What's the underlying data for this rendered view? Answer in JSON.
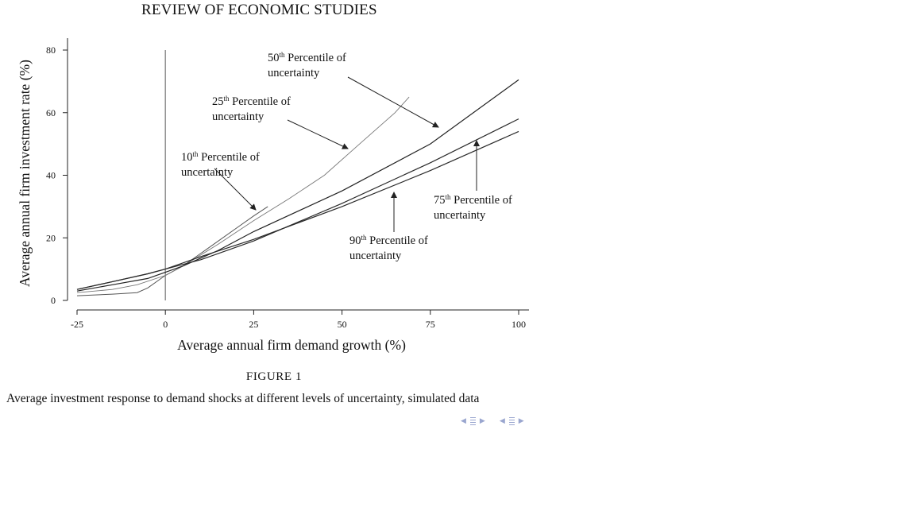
{
  "header": {
    "journal": "REVIEW OF ECONOMIC STUDIES"
  },
  "figure": {
    "label": "FIGURE 1",
    "caption": "Average investment response to demand shocks at different levels of uncertainty, simulated data"
  },
  "chart_data": {
    "type": "line",
    "xlabel": "Average annual firm demand growth (%)",
    "ylabel": "Average annual firm investment rate (%)",
    "xlim": [
      -25,
      100
    ],
    "ylim": [
      0,
      80
    ],
    "xticks": [
      -25,
      0,
      25,
      50,
      75,
      100
    ],
    "yticks": [
      0,
      20,
      40,
      60,
      80
    ],
    "vline_x": 0,
    "grid": false,
    "series": [
      {
        "name": "10th Percentile of uncertainty",
        "x": [
          -25,
          -15,
          -8,
          -5,
          0,
          5,
          10,
          15,
          20,
          25,
          29
        ],
        "y": [
          1.5,
          2,
          2.5,
          4,
          8,
          11,
          15,
          19,
          23,
          27,
          30
        ]
      },
      {
        "name": "25th Percentile of uncertainty",
        "x": [
          -25,
          -15,
          -8,
          0,
          5,
          10,
          15,
          25,
          35,
          45,
          55,
          65,
          69
        ],
        "y": [
          2.5,
          3.5,
          5,
          8,
          11,
          14.5,
          18,
          25.5,
          32.5,
          40,
          50,
          60,
          65
        ]
      },
      {
        "name": "50th Percentile of uncertainty",
        "x": [
          -25,
          -15,
          -5,
          0,
          5,
          10,
          15,
          25,
          50,
          75,
          100
        ],
        "y": [
          3,
          5,
          7,
          9,
          11,
          13.5,
          16,
          22,
          35,
          50,
          70.5
        ]
      },
      {
        "name": "75th Percentile of uncertainty",
        "x": [
          -25,
          -15,
          -5,
          0,
          5,
          10,
          25,
          50,
          75,
          100
        ],
        "y": [
          3.5,
          6,
          8.5,
          10,
          11.5,
          13,
          19,
          31,
          44,
          58
        ]
      },
      {
        "name": "90th Percentile of uncertainty",
        "x": [
          -25,
          -15,
          -5,
          0,
          5,
          10,
          25,
          50,
          75,
          100
        ],
        "y": [
          3.5,
          6,
          8.5,
          10,
          12,
          14,
          19.5,
          30,
          41.5,
          54
        ]
      }
    ],
    "annotations": [
      {
        "line1": "10",
        "sup": "th",
        "line1_rest": " Percentile of",
        "line2": "uncertainty"
      },
      {
        "line1": "25",
        "sup": "th",
        "line1_rest": " Percentile of",
        "line2": "uncertainty"
      },
      {
        "line1": "50",
        "sup": "th",
        "line1_rest": " Percentile of",
        "line2": "uncertainty"
      },
      {
        "line1": "75",
        "sup": "th",
        "line1_rest": " Percentile of",
        "line2": "uncertainty"
      },
      {
        "line1": "90",
        "sup": "th",
        "line1_rest": " Percentile of",
        "line2": "uncertainty"
      }
    ]
  },
  "nav": {
    "color": "#9aa6cf"
  }
}
